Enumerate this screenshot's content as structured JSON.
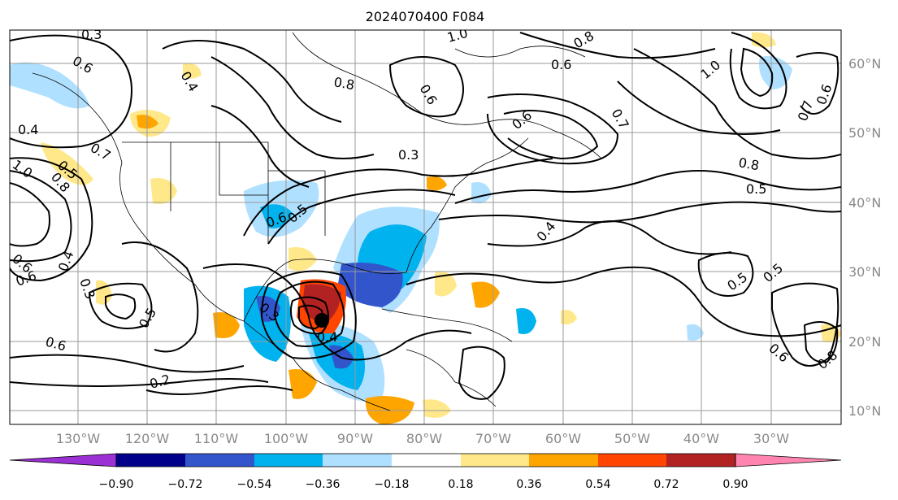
{
  "title": "2024070400 F084",
  "lon_labels": [
    "130°W",
    "120°W",
    "110°W",
    "100°W",
    "90°W",
    "80°W",
    "70°W",
    "60°W",
    "50°W",
    "40°W",
    "30°W"
  ],
  "lat_labels": [
    "60°N",
    "50°N",
    "40°N",
    "30°N",
    "20°N",
    "10°N"
  ],
  "colorbar": {
    "ticks": [
      "−0.90",
      "−0.72",
      "−0.54",
      "−0.36",
      "−0.18",
      "0.18",
      "0.36",
      "0.54",
      "0.72",
      "0.90"
    ],
    "colors": [
      "#9b30d4",
      "#00008b",
      "#3355cc",
      "#00b2ee",
      "#b0e0ff",
      "#ffffff",
      "#ffe88a",
      "#ffa500",
      "#ff4500",
      "#b22222",
      "#ff85b0"
    ]
  },
  "contour_labels": [
    "0.3",
    "0.6",
    "0.4",
    "1.0",
    "0.7",
    "0.8",
    "0.5",
    "0.4",
    "0.6",
    "0.5",
    "0.3",
    "0.4",
    "1.0",
    "0.6",
    "0.8",
    "0.7",
    "0.6",
    "0.8",
    "1.0",
    "0.8",
    "0.7",
    "0.6",
    "0.5",
    "0.4",
    "0.5",
    "0.6",
    "0.8",
    "0.6",
    "0.3",
    "0.2",
    "0.5",
    "0.6",
    "0.3",
    "0.6",
    "0.4",
    "0.5",
    "0.6"
  ]
}
